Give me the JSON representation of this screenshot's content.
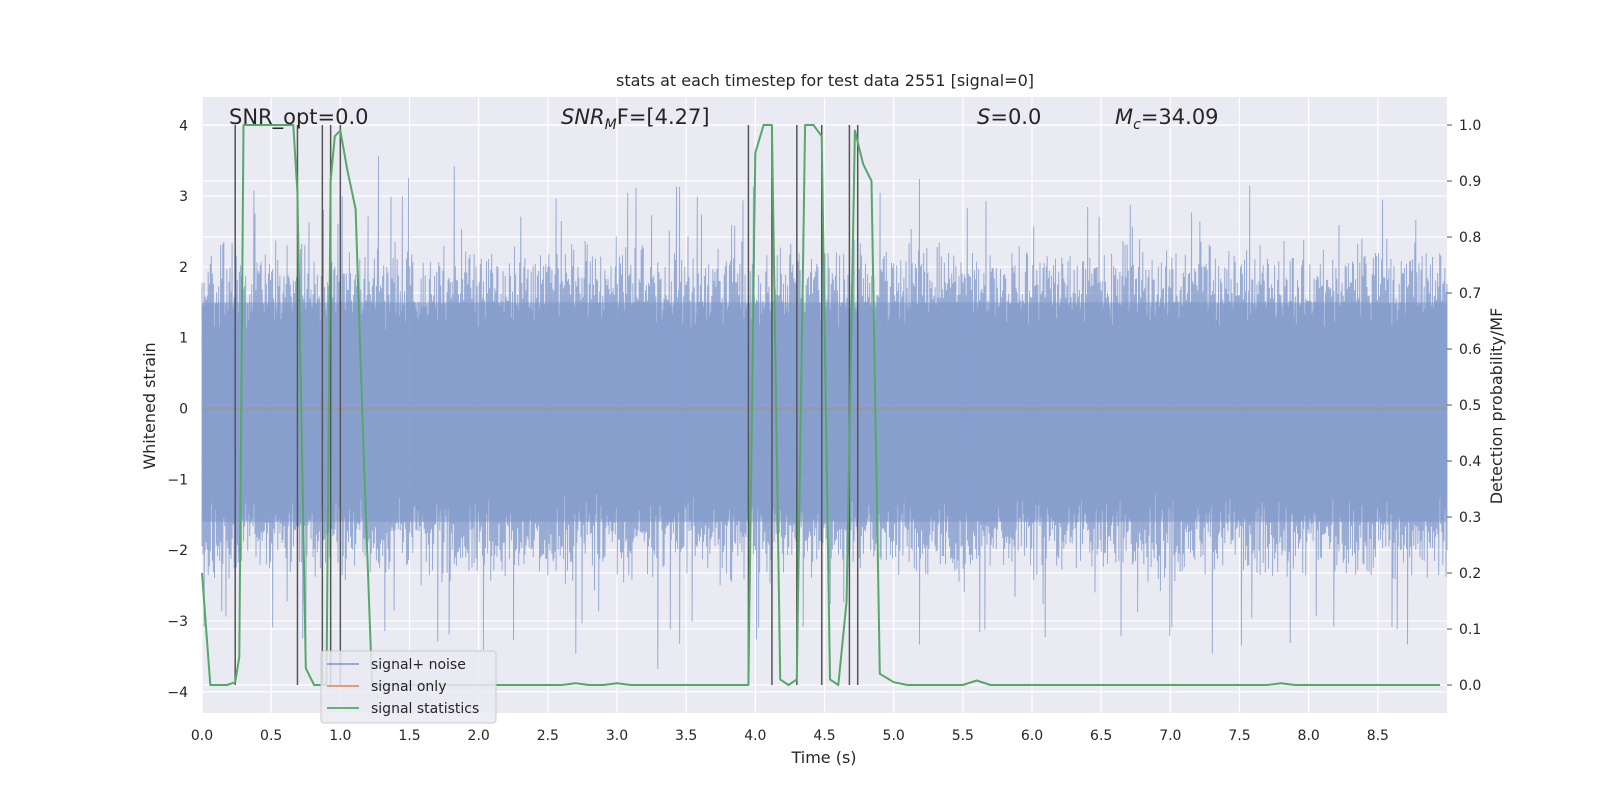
{
  "chart_data": {
    "type": "line",
    "title": "stats at each timestep for test data 2551 [signal=0]",
    "xlabel": "Time (s)",
    "ylabel_left": "Whitened strain",
    "ylabel_right": "Detection probability/MF",
    "xlim": [
      0.0,
      9.0
    ],
    "ylim_left": [
      -4.3,
      4.4
    ],
    "ylim_right": [
      -0.05,
      1.05
    ],
    "x_ticks": [
      "0.0",
      "0.5",
      "1.0",
      "1.5",
      "2.0",
      "2.5",
      "3.0",
      "3.5",
      "4.0",
      "4.5",
      "5.0",
      "5.5",
      "6.0",
      "6.5",
      "7.0",
      "7.5",
      "8.0",
      "8.5"
    ],
    "y_ticks_left": [
      "−4",
      "−3",
      "−2",
      "−1",
      "0",
      "1",
      "2",
      "3",
      "4"
    ],
    "y_ticks_right": [
      "0.0",
      "0.1",
      "0.2",
      "0.3",
      "0.4",
      "0.5",
      "0.6",
      "0.7",
      "0.8",
      "0.9",
      "1.0"
    ],
    "grid": true,
    "annotations": {
      "snr_opt": "SNR_opt=0.0",
      "snr_mf_base": "SNR",
      "snr_mf_sub": "M",
      "snr_mf_rest": "F=[4.27]",
      "s_label": "S",
      "s_rest": "=0.0",
      "mc_base": "M",
      "mc_sub": "c",
      "mc_rest": "=34.09"
    },
    "legend": {
      "position": "lower-left",
      "entries": [
        "signal+ noise",
        "signal only",
        "signal statistics"
      ]
    },
    "colors": {
      "noise": "#7b95c9",
      "signal_only": "#dd8452",
      "statistics": "#55a868",
      "vlines": "#555555",
      "background": "#eaeaf2",
      "grid": "#ffffff"
    },
    "series": [
      {
        "name": "signal statistics",
        "x": [
          0.0,
          0.06,
          0.12,
          0.18,
          0.24,
          0.27,
          0.3,
          0.36,
          0.42,
          0.48,
          0.54,
          0.6,
          0.66,
          0.69,
          0.75,
          0.81,
          0.87,
          0.9,
          0.93,
          0.96,
          1.0,
          1.05,
          1.11,
          1.17,
          1.23,
          2.0,
          2.5,
          2.6,
          2.7,
          2.8,
          2.9,
          3.0,
          3.1,
          3.5,
          3.9,
          3.95,
          4.0,
          4.06,
          4.12,
          4.18,
          4.24,
          4.3,
          4.36,
          4.42,
          4.48,
          4.54,
          4.6,
          4.66,
          4.72,
          4.78,
          4.84,
          4.9,
          5.0,
          5.1,
          5.4,
          5.5,
          5.6,
          5.7,
          5.8,
          6.5,
          7.5,
          7.7,
          7.8,
          7.9,
          8.0,
          8.5,
          8.95
        ],
        "y": [
          0.2,
          0.0,
          0.0,
          0.0,
          0.005,
          0.05,
          1.0,
          1.0,
          1.0,
          1.0,
          1.0,
          1.0,
          1.0,
          0.88,
          0.03,
          0.0,
          0.0,
          0.0,
          0.9,
          0.98,
          0.99,
          0.92,
          0.85,
          0.4,
          0.0,
          0.0,
          0.0,
          0.0,
          0.003,
          0.0,
          0.0,
          0.003,
          0.0,
          0.0,
          0.0,
          0.0,
          0.95,
          1.0,
          1.0,
          0.01,
          0.0,
          0.01,
          1.0,
          1.0,
          0.98,
          0.01,
          0.0,
          0.15,
          0.99,
          0.93,
          0.9,
          0.02,
          0.005,
          0.0,
          0.0,
          0.0,
          0.008,
          0.0,
          0.0,
          0.0,
          0.0,
          0.0,
          0.003,
          0.0,
          0.0,
          0.0,
          0.0
        ]
      },
      {
        "name": "signal only",
        "x": [
          0.0,
          9.0
        ],
        "y": [
          0.0,
          0.0
        ]
      },
      {
        "name": "signal+ noise",
        "x_range": [
          0.0,
          9.0
        ],
        "amplitude_core": 2.0,
        "amplitude_peak": 4.0,
        "samples": 1200
      }
    ],
    "vlines": {
      "x": [
        0.24,
        0.69,
        0.87,
        0.93,
        1.0,
        3.95,
        4.12,
        4.3,
        4.48,
        4.68,
        4.74
      ],
      "y_top_right": 1.0,
      "y_bottom_right": 0.0
    }
  }
}
